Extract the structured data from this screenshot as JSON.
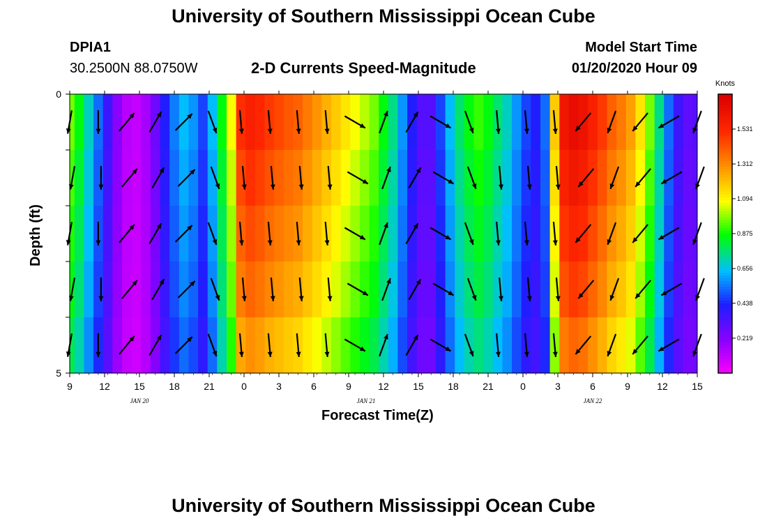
{
  "page": {
    "title_top": "University of Southern Mississippi Ocean Cube",
    "title_bottom": "University of Southern Mississippi Ocean Cube",
    "station_id": "DPIA1",
    "station_coords": "30.2500N 88.0750W",
    "subtitle": "2-D Currents Speed-Magnitude",
    "model_start_label": "Model Start Time",
    "model_start_value": "01/20/2020 Hour 09"
  },
  "chart_data": {
    "type": "heatmap",
    "title": "2-D Currents Speed-Magnitude",
    "xlabel": "Forecast Time(Z)",
    "ylabel": "Depth (ft)",
    "ylim": [
      0,
      5
    ],
    "y_tick_labels": [
      "0",
      "5"
    ],
    "x_tick_labels": [
      "9",
      "12",
      "15",
      "18",
      "21",
      "0",
      "3",
      "6",
      "9",
      "12",
      "15",
      "18",
      "21",
      "0",
      "3",
      "6",
      "9",
      "12",
      "15"
    ],
    "date_labels": [
      {
        "text": "JAN 20",
        "tick_index": 2
      },
      {
        "text": "JAN 21",
        "tick_index": 8.5
      },
      {
        "text": "JAN 22",
        "tick_index": 15
      }
    ],
    "colorbar": {
      "label": "Knots",
      "min": 0.0,
      "max": 1.75,
      "ticks": [
        "1.531",
        "1.312",
        "1.094",
        "0.875",
        "0.656",
        "0.438",
        "0.219"
      ]
    },
    "columns": [
      {
        "hour": 0,
        "speed": 0.9
      },
      {
        "hour": 1,
        "speed": 0.8
      },
      {
        "hour": 2,
        "speed": 0.65
      },
      {
        "hour": 3,
        "speed": 0.5
      },
      {
        "hour": 4,
        "speed": 0.35
      },
      {
        "hour": 5,
        "speed": 0.2
      },
      {
        "hour": 6,
        "speed": 0.12
      },
      {
        "hour": 7,
        "speed": 0.1
      },
      {
        "hour": 8,
        "speed": 0.15
      },
      {
        "hour": 9,
        "speed": 0.25
      },
      {
        "hour": 10,
        "speed": 0.4
      },
      {
        "hour": 11,
        "speed": 0.52
      },
      {
        "hour": 12,
        "speed": 0.6
      },
      {
        "hour": 13,
        "speed": 0.55
      },
      {
        "hour": 14,
        "speed": 0.45
      },
      {
        "hour": 15,
        "speed": 0.6
      },
      {
        "hour": 16,
        "speed": 0.8
      },
      {
        "hour": 17,
        "speed": 1.0
      },
      {
        "hour": 18,
        "speed": 1.4
      },
      {
        "hour": 19,
        "speed": 1.45
      },
      {
        "hour": 20,
        "speed": 1.42
      },
      {
        "hour": 21,
        "speed": 1.38
      },
      {
        "hour": 22,
        "speed": 1.35
      },
      {
        "hour": 23,
        "speed": 1.32
      },
      {
        "hour": 24,
        "speed": 1.3
      },
      {
        "hour": 25,
        "speed": 1.25
      },
      {
        "hour": 26,
        "speed": 1.2
      },
      {
        "hour": 27,
        "speed": 1.15
      },
      {
        "hour": 28,
        "speed": 1.1
      },
      {
        "hour": 29,
        "speed": 1.05
      },
      {
        "hour": 30,
        "speed": 1.0
      },
      {
        "hour": 31,
        "speed": 0.95
      },
      {
        "hour": 32,
        "speed": 0.9
      },
      {
        "hour": 33,
        "speed": 0.8
      },
      {
        "hour": 34,
        "speed": 0.7
      },
      {
        "hour": 35,
        "speed": 0.55
      },
      {
        "hour": 36,
        "speed": 0.4
      },
      {
        "hour": 37,
        "speed": 0.3
      },
      {
        "hour": 38,
        "speed": 0.3
      },
      {
        "hour": 39,
        "speed": 0.45
      },
      {
        "hour": 40,
        "speed": 0.6
      },
      {
        "hour": 41,
        "speed": 0.72
      },
      {
        "hour": 42,
        "speed": 0.8
      },
      {
        "hour": 43,
        "speed": 0.85
      },
      {
        "hour": 44,
        "speed": 0.8
      },
      {
        "hour": 45,
        "speed": 0.72
      },
      {
        "hour": 46,
        "speed": 0.65
      },
      {
        "hour": 47,
        "speed": 0.55
      },
      {
        "hour": 48,
        "speed": 0.45
      },
      {
        "hour": 49,
        "speed": 0.4
      },
      {
        "hour": 50,
        "speed": 0.5
      },
      {
        "hour": 51,
        "speed": 1.1
      },
      {
        "hour": 52,
        "speed": 1.5
      },
      {
        "hour": 53,
        "speed": 1.55
      },
      {
        "hour": 54,
        "speed": 1.52
      },
      {
        "hour": 55,
        "speed": 1.45
      },
      {
        "hour": 56,
        "speed": 1.38
      },
      {
        "hour": 57,
        "speed": 1.3
      },
      {
        "hour": 58,
        "speed": 1.25
      },
      {
        "hour": 59,
        "speed": 1.18
      },
      {
        "hour": 60,
        "speed": 1.05
      },
      {
        "hour": 61,
        "speed": 0.9
      },
      {
        "hour": 62,
        "speed": 0.7
      },
      {
        "hour": 63,
        "speed": 0.5
      },
      {
        "hour": 64,
        "speed": 0.35
      },
      {
        "hour": 65,
        "speed": 0.28
      },
      {
        "hour": 66,
        "speed": 0.3
      }
    ],
    "depth_factors": [
      1.08,
      1.04,
      1.0,
      0.96,
      0.9
    ],
    "arrow_hours": [
      0,
      3,
      6,
      9,
      12,
      15,
      18,
      21,
      24,
      27,
      30,
      33,
      36,
      39,
      42,
      45,
      48,
      51,
      54,
      57,
      60,
      63,
      66
    ],
    "arrow_directions_deg": [
      190,
      180,
      40,
      30,
      45,
      160,
      175,
      175,
      175,
      175,
      120,
      20,
      30,
      120,
      160,
      175,
      175,
      175,
      220,
      200,
      220,
      240,
      200
    ]
  }
}
